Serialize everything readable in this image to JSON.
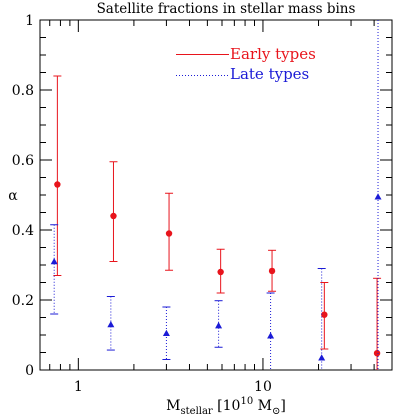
{
  "chart_data": {
    "type": "scatter",
    "title": "Satellite fractions in stellar mass bins",
    "xlabel": {
      "base": "M",
      "sub": "stellar",
      "mid": " [10",
      "sup": "10",
      "tail": " M",
      "sun": "⊙",
      "end": "]"
    },
    "ylabel": "α",
    "x_scale": "log",
    "xlim": [
      0.62,
      50
    ],
    "ylim": [
      0,
      1
    ],
    "x_ticks": [
      {
        "value": 1,
        "label": "1"
      },
      {
        "value": 10,
        "label": "10"
      }
    ],
    "y_ticks": [
      {
        "value": 0,
        "label": "0"
      },
      {
        "value": 0.2,
        "label": "0.2"
      },
      {
        "value": 0.4,
        "label": "0.4"
      },
      {
        "value": 0.6,
        "label": "0.6"
      },
      {
        "value": 0.8,
        "label": "0.8"
      },
      {
        "value": 1,
        "label": "1"
      }
    ],
    "legend_position": "top-center",
    "series": [
      {
        "name": "Early types",
        "color": "#e8141c",
        "marker": "circle",
        "line_style": "solid",
        "points": [
          {
            "x": 0.77,
            "y": 0.53,
            "lo": 0.27,
            "hi": 0.84
          },
          {
            "x": 1.55,
            "y": 0.44,
            "lo": 0.31,
            "hi": 0.595
          },
          {
            "x": 3.1,
            "y": 0.39,
            "lo": 0.285,
            "hi": 0.505
          },
          {
            "x": 5.9,
            "y": 0.28,
            "lo": 0.22,
            "hi": 0.345
          },
          {
            "x": 11.2,
            "y": 0.283,
            "lo": 0.225,
            "hi": 0.342
          },
          {
            "x": 21.5,
            "y": 0.158,
            "lo": 0.06,
            "hi": 0.25
          },
          {
            "x": 41.5,
            "y": 0.048,
            "lo": 0.0,
            "hi": 0.262
          }
        ]
      },
      {
        "name": "Late types",
        "color": "#1b1bd6",
        "marker": "triangle",
        "line_style": "dotted",
        "points": [
          {
            "x": 0.74,
            "y": 0.31,
            "lo": 0.16,
            "hi": 0.415
          },
          {
            "x": 1.5,
            "y": 0.13,
            "lo": 0.057,
            "hi": 0.21
          },
          {
            "x": 3.0,
            "y": 0.105,
            "lo": 0.03,
            "hi": 0.18
          },
          {
            "x": 5.75,
            "y": 0.127,
            "lo": 0.065,
            "hi": 0.198
          },
          {
            "x": 11.0,
            "y": 0.098,
            "lo": 0.0,
            "hi": 0.22
          },
          {
            "x": 20.8,
            "y": 0.035,
            "lo": 0.0,
            "hi": 0.29
          },
          {
            "x": 42.0,
            "y": 0.495,
            "lo": 0.0,
            "hi": 1.0
          }
        ]
      }
    ]
  }
}
